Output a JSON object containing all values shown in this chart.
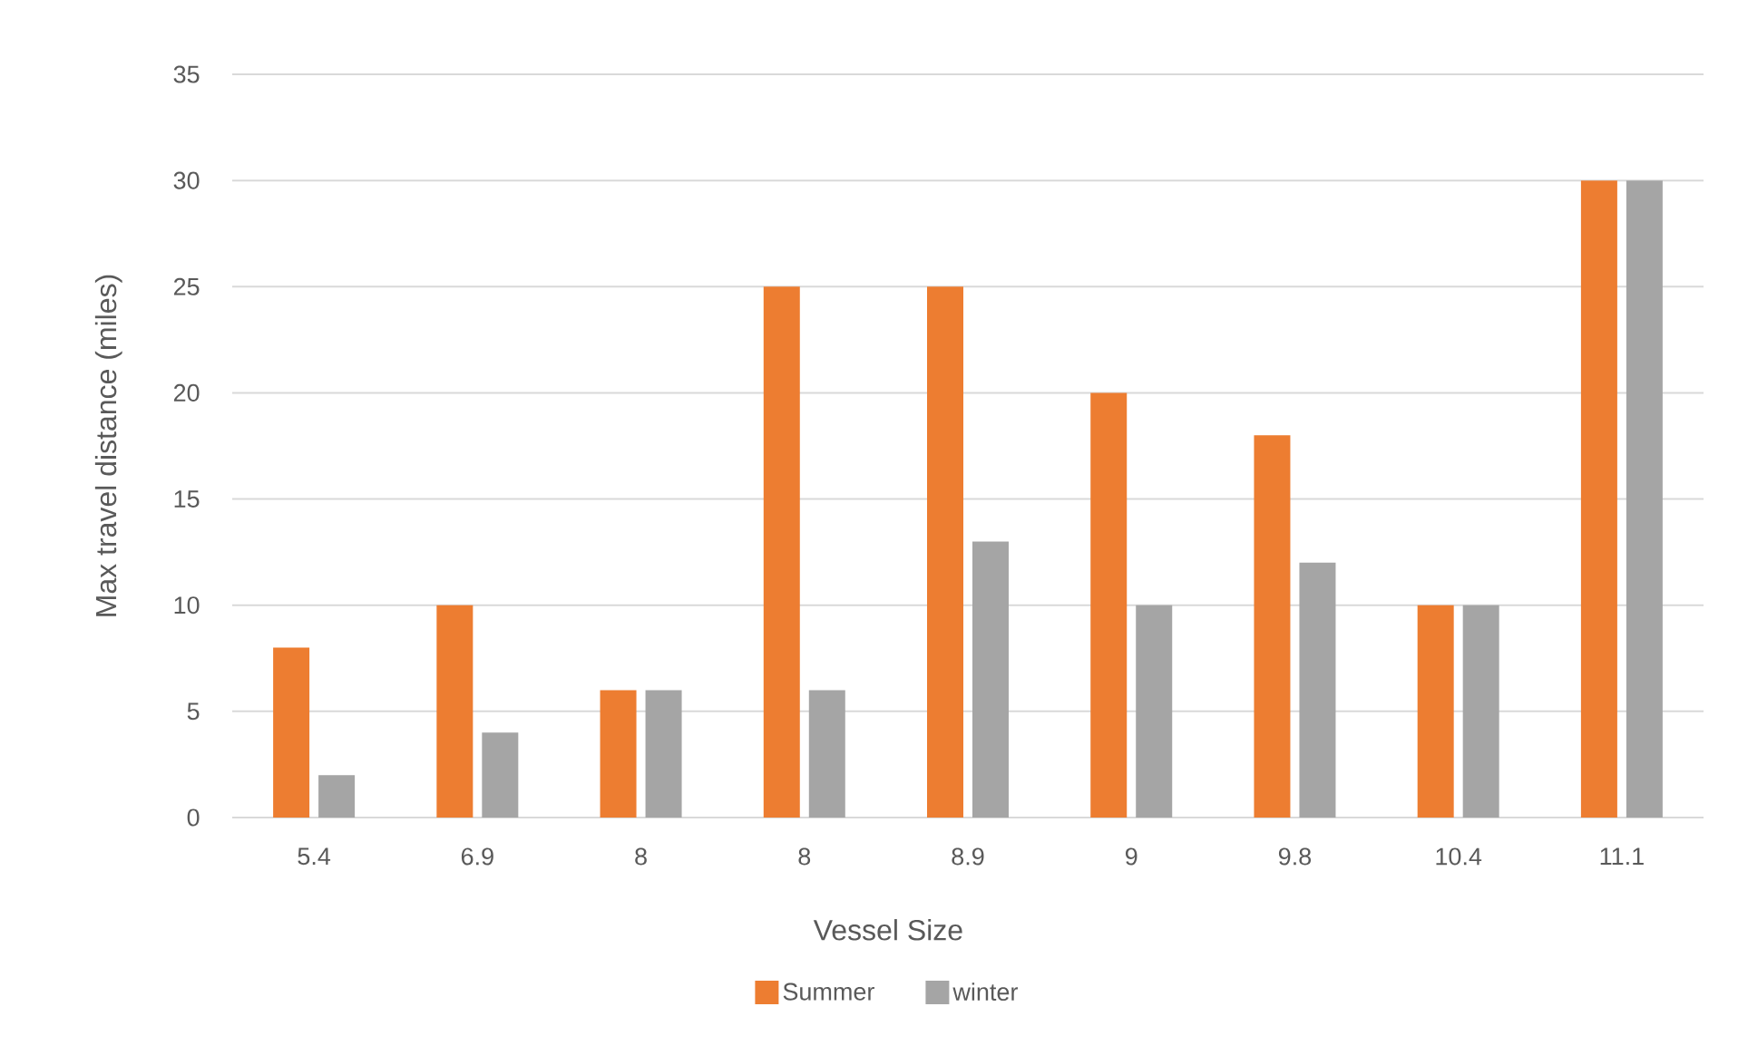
{
  "chart_data": {
    "type": "bar",
    "xlabel": "Vessel Size",
    "ylabel": "Max travel distance  (miles)",
    "categories": [
      "5.4",
      "6.9",
      "8",
      "8",
      "8.9",
      "9",
      "9.8",
      "10.4",
      "11.1"
    ],
    "series": [
      {
        "name": "Summer",
        "color": "#ed7d31",
        "values": [
          8,
          10,
          6,
          25,
          25,
          20,
          18,
          10,
          30
        ]
      },
      {
        "name": "winter",
        "color": "#a5a5a5",
        "values": [
          2,
          4,
          6,
          6,
          13,
          10,
          12,
          10,
          30
        ]
      }
    ],
    "ylim": [
      0,
      35
    ],
    "yticks": [
      0,
      5,
      10,
      15,
      20,
      25,
      30,
      35
    ],
    "grid": "y",
    "legend": "bottom"
  }
}
